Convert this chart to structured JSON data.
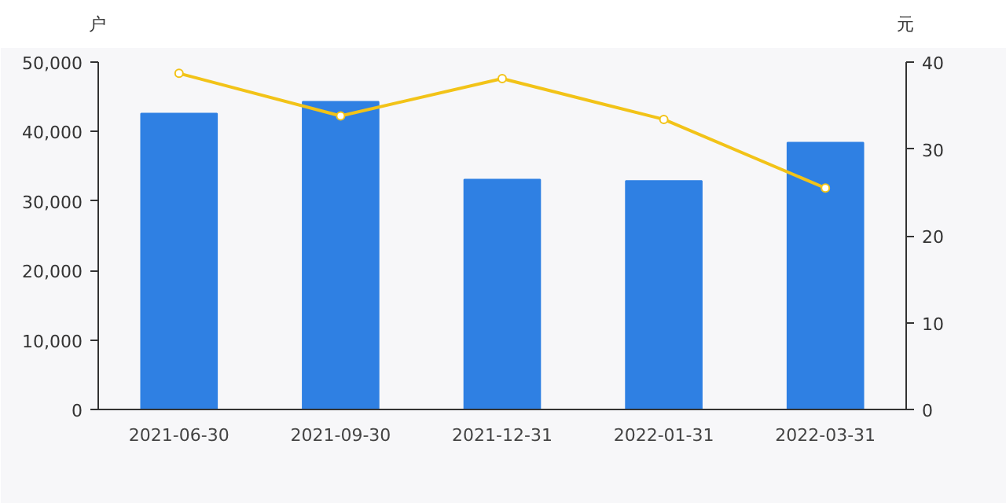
{
  "chart_data": {
    "type": "bar",
    "ylabel": "户",
    "y2label": "元",
    "categories": [
      "2021-06-30",
      "2021-09-30",
      "2021-12-31",
      "2022-01-31",
      "2022-03-31"
    ],
    "series": [
      {
        "color": "#2f80e3",
        "values": [
          42600,
          44300,
          33100,
          32900,
          38400
        ]
      },
      {
        "type": "line",
        "axis": "y2",
        "color": "#f2c318",
        "marker": "circle",
        "values": [
          38.7,
          33.8,
          38.1,
          33.4,
          25.5
        ]
      }
    ],
    "ylim": [
      0,
      50000
    ],
    "yticks": [
      {
        "value": 0,
        "label": "0"
      },
      {
        "value": 10000,
        "label": "10,000"
      },
      {
        "value": 20000,
        "label": "20,000"
      },
      {
        "value": 30000,
        "label": "30,000"
      },
      {
        "value": 40000,
        "label": "40,000"
      },
      {
        "value": 50000,
        "label": "50,000"
      }
    ],
    "y2lim": [
      0,
      40
    ],
    "y2ticks": [
      0,
      10,
      20,
      30,
      40
    ],
    "grid": false
  }
}
